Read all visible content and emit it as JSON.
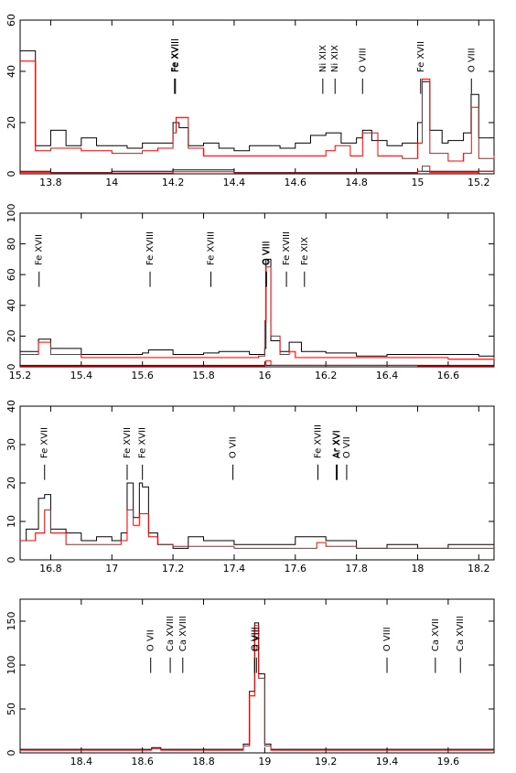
{
  "chart_data": [
    {
      "type": "line",
      "xlim": [
        13.7,
        15.25
      ],
      "ylim": [
        0,
        60
      ],
      "xticks": [
        13.8,
        14,
        14.2,
        14.4,
        14.6,
        14.8,
        15,
        15.2
      ],
      "yticks": [
        0,
        20,
        40,
        60
      ],
      "line_labels": [
        {
          "x": 14.205,
          "label": "Fe XVIII"
        },
        {
          "x": 14.208,
          "label": "Fe XVIII"
        },
        {
          "x": 14.69,
          "label": "Ni XIX"
        },
        {
          "x": 14.73,
          "label": "Ni XIX"
        },
        {
          "x": 14.82,
          "label": "O VIII"
        },
        {
          "x": 15.01,
          "label": "Fe XVII"
        },
        {
          "x": 15.176,
          "label": "O VIII"
        }
      ],
      "series": [
        {
          "color": "#000000",
          "x": [
            13.7,
            13.75,
            13.8,
            13.85,
            13.9,
            13.95,
            14.0,
            14.05,
            14.1,
            14.15,
            14.2,
            14.22,
            14.25,
            14.3,
            14.35,
            14.4,
            14.45,
            14.5,
            14.55,
            14.6,
            14.65,
            14.7,
            14.75,
            14.8,
            14.82,
            14.85,
            14.9,
            14.95,
            15.0,
            15.015,
            15.04,
            15.08,
            15.1,
            15.15,
            15.175,
            15.2,
            15.25
          ],
          "y": [
            48,
            11,
            17,
            11,
            14,
            11,
            11,
            10,
            12,
            12,
            20,
            18,
            11,
            12,
            10,
            9,
            11,
            11,
            10,
            12,
            15,
            16,
            12,
            14,
            17,
            13,
            11,
            12,
            20,
            36,
            17,
            12,
            13,
            16,
            31,
            14,
            13
          ]
        },
        {
          "color": "#ff0000",
          "x": [
            13.7,
            13.75,
            13.8,
            13.9,
            14.0,
            14.1,
            14.15,
            14.2,
            14.21,
            14.25,
            14.3,
            14.4,
            14.5,
            14.6,
            14.7,
            14.73,
            14.78,
            14.82,
            14.87,
            14.95,
            15.0,
            15.015,
            15.04,
            15.1,
            15.15,
            15.176,
            15.2,
            15.25
          ],
          "y": [
            44,
            9,
            10,
            9,
            8,
            9,
            10,
            16,
            22,
            10,
            7,
            7,
            7,
            7,
            9,
            11,
            7,
            16,
            7,
            6,
            12,
            37,
            8,
            5,
            8,
            26,
            6,
            7
          ]
        },
        {
          "color": "#000000",
          "x": [
            13.7,
            13.8,
            14.0,
            14.2,
            14.4,
            14.6,
            14.8,
            15.0,
            15.2,
            15.25
          ],
          "y": [
            1,
            0.5,
            1,
            1.5,
            0.5,
            0.5,
            0.5,
            1,
            1,
            1
          ]
        },
        {
          "color": "#ff0000",
          "x": [
            13.7,
            13.8,
            14.0,
            14.2,
            14.4,
            14.6,
            14.8,
            15.0,
            15.015,
            15.04,
            15.2,
            15.25
          ],
          "y": [
            0.5,
            0.3,
            0.3,
            0.8,
            0.3,
            0.3,
            0.3,
            1,
            3,
            0.5,
            1,
            0.5
          ]
        }
      ]
    },
    {
      "type": "line",
      "xlim": [
        15.2,
        16.75
      ],
      "ylim": [
        0,
        100
      ],
      "xticks": [
        15.2,
        15.4,
        15.6,
        15.8,
        16,
        16.2,
        16.4,
        16.6
      ],
      "yticks": [
        0,
        20,
        40,
        60,
        80,
        100
      ],
      "line_labels": [
        {
          "x": 15.262,
          "label": "Fe XVII"
        },
        {
          "x": 15.625,
          "label": "Fe XVIII"
        },
        {
          "x": 15.824,
          "label": "Fe XVIII"
        },
        {
          "x": 16.004,
          "label": "O VIII"
        },
        {
          "x": 16.006,
          "label": "O VIII"
        },
        {
          "x": 16.071,
          "label": "Fe XVIII"
        },
        {
          "x": 16.13,
          "label": "Fe XIX"
        }
      ],
      "series": [
        {
          "color": "#000000",
          "x": [
            15.2,
            15.26,
            15.3,
            15.4,
            15.5,
            15.6,
            15.62,
            15.7,
            15.8,
            15.85,
            15.95,
            16.0,
            16.004,
            16.02,
            16.05,
            16.08,
            16.12,
            16.2,
            16.3,
            16.4,
            16.5,
            16.6,
            16.7,
            16.75
          ],
          "y": [
            10,
            18,
            12,
            8,
            8,
            9,
            11,
            8,
            9,
            10,
            8,
            12,
            70,
            17,
            10,
            16,
            10,
            9,
            7,
            8,
            8,
            8,
            7,
            8
          ]
        },
        {
          "color": "#ff0000",
          "x": [
            15.2,
            15.26,
            15.3,
            15.4,
            15.5,
            15.6,
            15.7,
            15.8,
            15.9,
            15.98,
            16.0,
            16.004,
            16.02,
            16.05,
            16.08,
            16.1,
            16.2,
            16.4,
            16.6,
            16.75
          ],
          "y": [
            8,
            16,
            8,
            6,
            6,
            6,
            6,
            6,
            6,
            7,
            30,
            65,
            20,
            8,
            10,
            6,
            6,
            6,
            5,
            6
          ]
        },
        {
          "color": "#000000",
          "x": [
            15.2,
            15.5,
            16.0,
            16.5,
            16.75
          ],
          "y": [
            1,
            1,
            1,
            1,
            1
          ]
        },
        {
          "color": "#ff0000",
          "x": [
            15.2,
            15.5,
            16.0,
            16.004,
            16.02,
            16.5,
            16.75
          ],
          "y": [
            0.5,
            0.5,
            1,
            4,
            1,
            0.5,
            0.5
          ]
        }
      ]
    },
    {
      "type": "line",
      "xlim": [
        16.7,
        18.25
      ],
      "ylim": [
        0,
        40
      ],
      "xticks": [
        16.8,
        17,
        17.2,
        17.4,
        17.6,
        17.8,
        18,
        18.2
      ],
      "yticks": [
        0,
        10,
        20,
        30,
        40
      ],
      "line_labels": [
        {
          "x": 16.78,
          "label": "Fe XVII"
        },
        {
          "x": 17.05,
          "label": "Fe XVII"
        },
        {
          "x": 17.1,
          "label": "Fe XVII"
        },
        {
          "x": 17.396,
          "label": "O VII"
        },
        {
          "x": 17.674,
          "label": "Fe XVIII"
        },
        {
          "x": 17.734,
          "label": "Ar XVI"
        },
        {
          "x": 17.737,
          "label": "Ar XVI"
        },
        {
          "x": 17.768,
          "label": "O VII"
        }
      ],
      "series": [
        {
          "color": "#000000",
          "x": [
            16.7,
            16.72,
            16.76,
            16.78,
            16.8,
            16.85,
            16.9,
            16.95,
            17.0,
            17.03,
            17.05,
            17.07,
            17.09,
            17.1,
            17.12,
            17.15,
            17.2,
            17.25,
            17.3,
            17.4,
            17.5,
            17.6,
            17.7,
            17.8,
            17.9,
            18.0,
            18.1,
            18.2,
            18.25
          ],
          "y": [
            5,
            8,
            16,
            17,
            8,
            7,
            5,
            6,
            5,
            7,
            20,
            11,
            20,
            19,
            7,
            4,
            3,
            6,
            5,
            4,
            4,
            6,
            5,
            3,
            4,
            3,
            4,
            4,
            4
          ]
        },
        {
          "color": "#ff0000",
          "x": [
            16.7,
            16.75,
            16.78,
            16.8,
            16.85,
            16.9,
            17.0,
            17.03,
            17.05,
            17.07,
            17.09,
            17.1,
            17.12,
            17.15,
            17.2,
            17.3,
            17.4,
            17.5,
            17.6,
            17.67,
            17.7,
            17.8,
            17.9,
            18.0,
            18.1,
            18.2,
            18.25
          ],
          "y": [
            5,
            7,
            13,
            7,
            4,
            4,
            4,
            5,
            13,
            9,
            12,
            12,
            6,
            4,
            3.5,
            3.5,
            3,
            3,
            3,
            4.5,
            3.5,
            3,
            3,
            3,
            3,
            3,
            3
          ]
        }
      ]
    },
    {
      "type": "line",
      "xlim": [
        18.2,
        19.75
      ],
      "ylim": [
        0,
        175
      ],
      "xticks": [
        18.4,
        18.6,
        18.8,
        19,
        19.2,
        19.4,
        19.6
      ],
      "yticks": [
        0,
        50,
        100,
        150
      ],
      "line_labels": [
        {
          "x": 18.627,
          "label": "O VII"
        },
        {
          "x": 18.691,
          "label": "Ca XVIII"
        },
        {
          "x": 18.732,
          "label": "Ca XVIII"
        },
        {
          "x": 18.967,
          "label": "O VIII"
        },
        {
          "x": 18.973,
          "label": "O VIII"
        },
        {
          "x": 19.4,
          "label": "O VIII"
        },
        {
          "x": 19.558,
          "label": "Ca XVII"
        },
        {
          "x": 19.64,
          "label": "Ca XVIII"
        }
      ],
      "series": [
        {
          "color": "#000000",
          "x": [
            18.2,
            18.4,
            18.6,
            18.63,
            18.66,
            18.8,
            18.9,
            18.93,
            18.95,
            18.967,
            18.98,
            19.0,
            19.02,
            19.2,
            19.4,
            19.6,
            19.75
          ],
          "y": [
            4,
            4,
            4,
            6,
            4,
            4,
            4,
            10,
            70,
            148,
            90,
            10,
            4,
            4,
            4,
            4,
            4
          ]
        },
        {
          "color": "#ff0000",
          "x": [
            18.2,
            18.4,
            18.6,
            18.63,
            18.66,
            18.8,
            18.9,
            18.93,
            18.95,
            18.967,
            18.98,
            19.0,
            19.02,
            19.2,
            19.4,
            19.6,
            19.75
          ],
          "y": [
            3,
            3,
            3,
            5,
            3,
            3,
            3,
            8,
            65,
            145,
            85,
            8,
            3,
            3,
            3,
            3,
            3
          ]
        }
      ]
    }
  ]
}
